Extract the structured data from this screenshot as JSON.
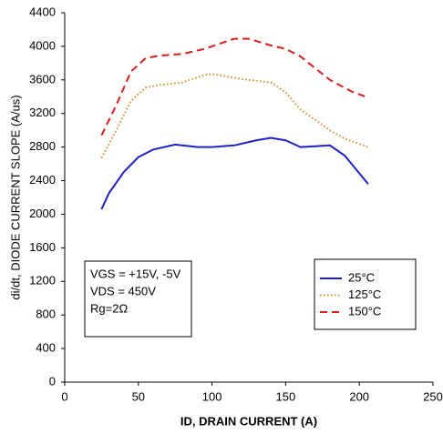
{
  "chart_data": {
    "type": "line",
    "xlabel": "ID, DRAIN CURRENT (A)",
    "ylabel": "di/dt, DIODE CURRENT SLOPE (A/us)",
    "xlim": [
      0,
      250
    ],
    "xticks": [
      0,
      50,
      100,
      150,
      200,
      250
    ],
    "ylim": [
      0,
      4400
    ],
    "yticks": [
      0,
      400,
      800,
      1200,
      1600,
      2000,
      2400,
      2800,
      3200,
      3600,
      4000,
      4400
    ],
    "grid": false,
    "annotations": [
      "VGS = +15V, -5V",
      "VDS = 450V",
      "Rg=2Ω"
    ],
    "legend": "lower right",
    "series": [
      {
        "name": "25°C",
        "color": "#1f1fcc",
        "linestyle": "solid",
        "x": [
          25,
          30,
          40,
          50,
          60,
          75,
          90,
          100,
          115,
          130,
          140,
          150,
          160,
          170,
          180,
          190,
          206
        ],
        "values": [
          2060,
          2250,
          2500,
          2680,
          2770,
          2830,
          2800,
          2800,
          2820,
          2880,
          2910,
          2880,
          2800,
          2810,
          2820,
          2700,
          2360
        ]
      },
      {
        "name": "125°C",
        "color": "#e08a2a",
        "linestyle": "dotted",
        "x": [
          25,
          35,
          45,
          55,
          65,
          80,
          95,
          100,
          110,
          120,
          140,
          150,
          160,
          180,
          190,
          206
        ],
        "values": [
          2670,
          3000,
          3350,
          3510,
          3540,
          3570,
          3660,
          3670,
          3640,
          3610,
          3570,
          3450,
          3250,
          3000,
          2900,
          2800
        ]
      },
      {
        "name": "150°C",
        "color": "#e01b1b",
        "linestyle": "dashed",
        "x": [
          25,
          35,
          45,
          55,
          65,
          80,
          95,
          105,
          115,
          125,
          140,
          150,
          160,
          180,
          195,
          206
        ],
        "values": [
          2940,
          3300,
          3700,
          3860,
          3890,
          3910,
          3970,
          4030,
          4090,
          4090,
          4010,
          3970,
          3880,
          3600,
          3460,
          3390
        ]
      }
    ]
  }
}
